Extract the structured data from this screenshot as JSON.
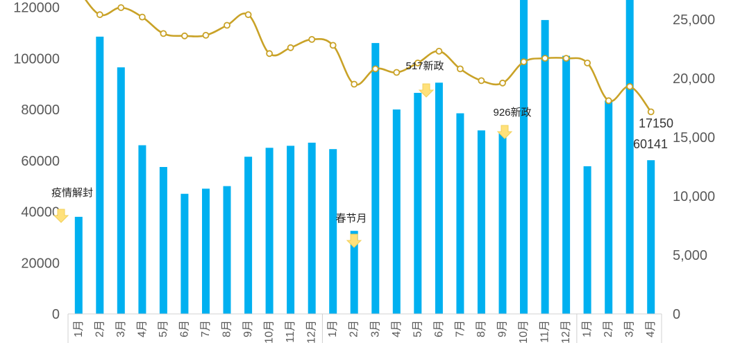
{
  "chart_data": {
    "type": "bar",
    "categories": [
      "1月",
      "2月",
      "3月",
      "4月",
      "5月",
      "6月",
      "7月",
      "8月",
      "9月",
      "10月",
      "11月",
      "12月",
      "1月",
      "2月",
      "3月",
      "4月",
      "5月",
      "6月",
      "7月",
      "8月",
      "9月",
      "10月",
      "11月",
      "12月",
      "1月",
      "2月",
      "3月",
      "4月"
    ],
    "series": [
      {
        "type": "bar",
        "axis": "left",
        "color": "#00b0f0",
        "values": [
          38000,
          108500,
          96500,
          66000,
          57500,
          47000,
          49000,
          50000,
          61500,
          65000,
          65800,
          67000,
          64500,
          32500,
          106000,
          80000,
          86500,
          90500,
          78500,
          71800,
          71000,
          130000,
          115000,
          101000,
          57800,
          83500,
          130000,
          60141
        ]
      },
      {
        "type": "line",
        "axis": "right",
        "color": "#c9a227",
        "values": [
          27500,
          25400,
          26000,
          25200,
          23800,
          23600,
          23650,
          24500,
          25400,
          22100,
          22600,
          23300,
          22800,
          19500,
          20800,
          20500,
          21300,
          22300,
          20800,
          19800,
          19600,
          21400,
          21700,
          21700,
          21300,
          18100,
          19300,
          17150
        ]
      }
    ],
    "left_axis": {
      "ticks": [
        "0",
        "20000",
        "40000",
        "60000",
        "80000",
        "100000",
        "120000"
      ],
      "ylim": [
        0,
        125000
      ]
    },
    "right_axis": {
      "ticks": [
        "0",
        "5,000",
        "10,000",
        "15,000",
        "20,000",
        "25,000"
      ],
      "ylim": [
        0,
        26500
      ]
    },
    "annotations": [
      {
        "text": "疫情解封",
        "index": 0
      },
      {
        "text": "春节月",
        "index": 13
      },
      {
        "text": "517新政",
        "index": 16
      },
      {
        "text": "926新政",
        "index": 20
      }
    ],
    "data_labels": [
      {
        "text": "17150",
        "index": 27,
        "series": 1
      },
      {
        "text": "60141",
        "index": 27,
        "series": 0
      }
    ],
    "grid": false
  }
}
